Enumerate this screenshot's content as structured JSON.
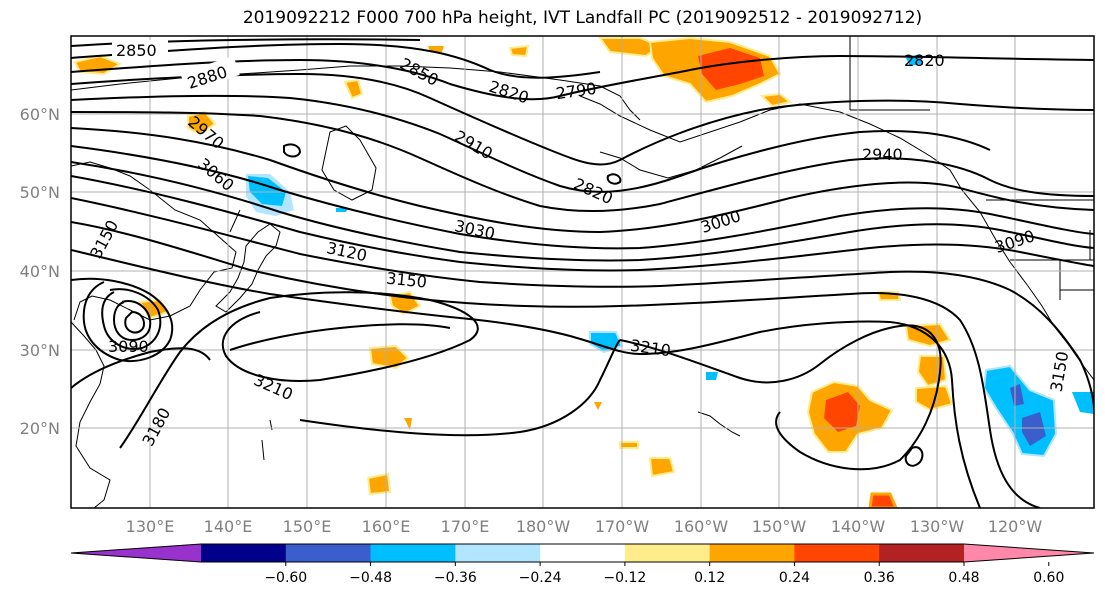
{
  "title": "2019092212 F000 700 hPa height, IVT Landfall PC (2019092512 - 2019092712)",
  "lat_labels": [
    "60°N",
    "50°N",
    "40°N",
    "30°N",
    "20°N"
  ],
  "lon_labels": [
    "130°E",
    "140°E",
    "150°E",
    "160°E",
    "170°E",
    "180°W",
    "170°W",
    "160°W",
    "150°W",
    "140°W",
    "130°W",
    "120°W"
  ],
  "contour_labels": [
    "2850",
    "2880",
    "2850",
    "2820",
    "2790",
    "2820",
    "2910",
    "2820",
    "2940",
    "2970",
    "3060",
    "3000",
    "3030",
    "3090",
    "3150",
    "3120",
    "3150",
    "3090",
    "3210",
    "3150",
    "3210",
    "3180"
  ],
  "colorbar": {
    "colors": [
      "#9932cc",
      "#00008b",
      "#3a5fcd",
      "#00bfff",
      "#b2e5ff",
      "#ffffff",
      "#ffec8b",
      "#ffa500",
      "#ff4500",
      "#b22222",
      "#ff88aa"
    ],
    "tick_labels": [
      "−0.60",
      "−0.48",
      "−0.36",
      "−0.24",
      "−0.12",
      "0.12",
      "0.24",
      "0.36",
      "0.48",
      "0.60"
    ]
  },
  "colors": {
    "positive_fill": "#ffa500",
    "strong_positive_fill": "#ff4500",
    "weak_positive_fill": "#ffec8b",
    "negative_fill": "#00bfff",
    "strong_negative_fill": "#3a5fcd",
    "weak_negative_fill": "#b2e5ff"
  }
}
